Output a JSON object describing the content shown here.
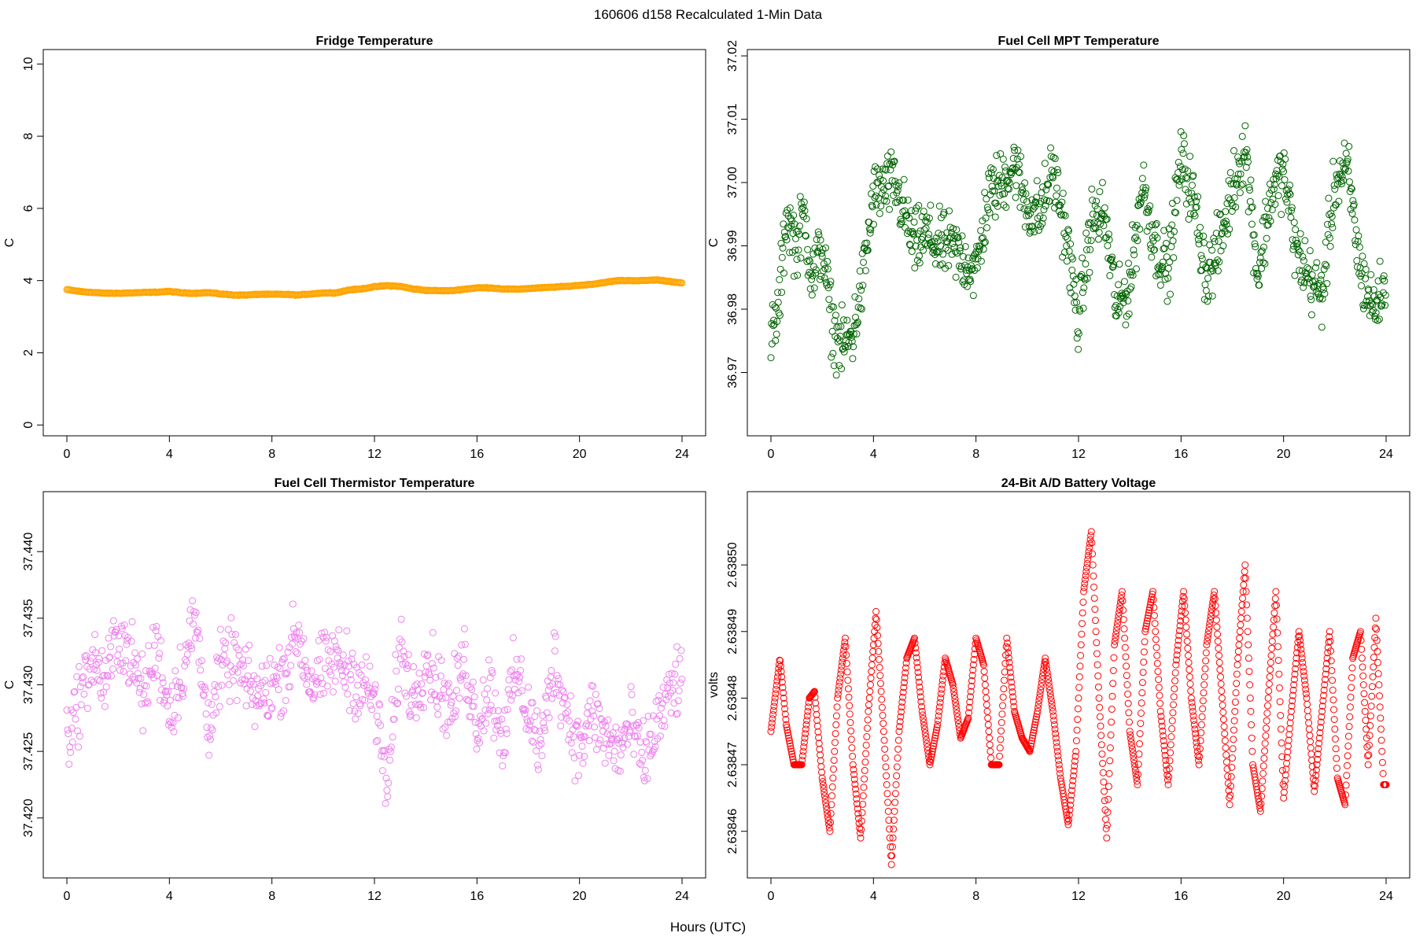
{
  "figure": {
    "suptitle": "160606   d158   Recalculated 1-Min Data",
    "xlabel": "Hours (UTC)"
  },
  "chart_data": [
    {
      "type": "scatter",
      "title": "Fridge Temperature",
      "xlabel": "",
      "ylabel": "C",
      "xlim": [
        0,
        24
      ],
      "ylim": [
        -0.3,
        10.4
      ],
      "xticks": [
        0,
        4,
        8,
        12,
        16,
        20,
        24
      ],
      "xtick_labels": [
        "0",
        "4",
        "8",
        "12",
        "16",
        "20",
        "24"
      ],
      "yticks": [
        0,
        2,
        4,
        6,
        8,
        10
      ],
      "ytick_labels": [
        "0",
        "2",
        "4",
        "6",
        "8",
        "10"
      ],
      "color": "#ffa500",
      "marker": "circle-open-dense",
      "series": [
        {
          "name": "Fridge Temperature",
          "x": [
            0,
            0.5,
            1,
            1.5,
            2,
            2.5,
            3,
            3.5,
            4,
            4.5,
            5,
            5.5,
            6,
            6.5,
            7,
            7.5,
            8,
            8.5,
            9,
            9.5,
            10,
            10.5,
            11,
            11.5,
            12,
            12.5,
            13,
            13.5,
            14,
            14.5,
            15,
            15.5,
            16,
            16.5,
            17,
            17.5,
            18,
            18.5,
            19,
            19.5,
            20,
            20.5,
            21,
            21.5,
            22,
            22.5,
            23,
            23.5,
            24
          ],
          "y": [
            3.75,
            3.7,
            3.67,
            3.65,
            3.65,
            3.66,
            3.67,
            3.68,
            3.7,
            3.66,
            3.65,
            3.67,
            3.63,
            3.6,
            3.6,
            3.62,
            3.62,
            3.62,
            3.6,
            3.63,
            3.66,
            3.66,
            3.74,
            3.77,
            3.83,
            3.86,
            3.84,
            3.77,
            3.73,
            3.72,
            3.72,
            3.76,
            3.8,
            3.8,
            3.77,
            3.76,
            3.78,
            3.8,
            3.82,
            3.84,
            3.87,
            3.9,
            3.95,
            4.0,
            4.0,
            4.0,
            4.02,
            3.98,
            3.93
          ]
        }
      ]
    },
    {
      "type": "scatter",
      "title": "Fuel Cell MPT Temperature",
      "xlabel": "",
      "ylabel": "C",
      "xlim": [
        0,
        24
      ],
      "ylim": [
        36.96,
        37.021
      ],
      "xticks": [
        0,
        4,
        8,
        12,
        16,
        20,
        24
      ],
      "xtick_labels": [
        "0",
        "4",
        "8",
        "12",
        "16",
        "20",
        "24"
      ],
      "yticks": [
        36.97,
        36.98,
        36.99,
        37.0,
        37.01,
        37.02
      ],
      "ytick_labels": [
        "36.97",
        "36.98",
        "36.99",
        "37.00",
        "37.01",
        "37.02"
      ],
      "color": "#006400",
      "marker": "circle-open",
      "series": [
        {
          "name": "Fuel Cell MPT Temperature",
          "x": [
            0,
            0.3,
            0.6,
            1,
            1.3,
            1.6,
            2,
            2.4,
            2.8,
            3.2,
            3.6,
            4,
            4.4,
            4.8,
            5.2,
            5.6,
            6,
            6.5,
            7,
            7.5,
            8,
            8.5,
            9,
            9.5,
            10,
            10.5,
            11,
            11.5,
            12,
            12.5,
            13,
            13.5,
            14,
            14.5,
            15,
            15.5,
            16,
            16.5,
            17,
            17.5,
            18,
            18.5,
            19,
            19.5,
            20,
            20.5,
            21,
            21.5,
            22,
            22.5,
            23,
            23.5,
            24
          ],
          "y": [
            36.975,
            36.98,
            36.995,
            36.99,
            36.995,
            36.985,
            36.99,
            36.977,
            36.974,
            36.976,
            36.985,
            36.998,
            36.999,
            37.0,
            36.995,
            36.99,
            36.992,
            36.99,
            36.99,
            36.988,
            36.986,
            36.998,
            37.0,
            37.003,
            36.996,
            36.995,
            37.002,
            36.992,
            36.978,
            36.994,
            36.995,
            36.98,
            36.984,
            37.0,
            36.99,
            36.986,
            37.004,
            36.997,
            36.985,
            36.99,
            36.999,
            37.006,
            36.985,
            36.998,
            37.002,
            36.989,
            36.985,
            36.982,
            37.0,
            37.002,
            36.986,
            36.98,
            36.984
          ]
        }
      ]
    },
    {
      "type": "scatter",
      "title": "Fuel Cell Thermistor Temperature",
      "xlabel": "",
      "ylabel": "C",
      "xlim": [
        0,
        24
      ],
      "ylim": [
        37.4155,
        37.4445
      ],
      "xticks": [
        0,
        4,
        8,
        12,
        16,
        20,
        24
      ],
      "xtick_labels": [
        "0",
        "4",
        "8",
        "12",
        "16",
        "20",
        "24"
      ],
      "yticks": [
        37.42,
        37.425,
        37.43,
        37.435,
        37.44
      ],
      "ytick_labels": [
        "37.420",
        "37.425",
        "37.430",
        "37.435",
        "37.440"
      ],
      "color": "#ee82ee",
      "marker": "circle-open",
      "series": [
        {
          "name": "Fuel Cell Thermistor Temperature",
          "x": [
            0,
            0.5,
            1,
            1.5,
            2,
            2.5,
            3,
            3.5,
            4,
            4.5,
            5,
            5.5,
            6,
            6.5,
            7,
            7.5,
            8,
            8.5,
            9,
            9.5,
            10,
            10.5,
            11,
            11.5,
            12,
            12.5,
            13,
            13.5,
            14,
            14.5,
            15,
            15.5,
            16,
            16.5,
            17,
            17.5,
            18,
            18.5,
            19,
            19.5,
            20,
            20.5,
            21,
            21.5,
            22,
            22.5,
            23,
            23.5,
            24
          ],
          "y": [
            37.426,
            37.429,
            37.432,
            37.43,
            37.434,
            37.432,
            37.429,
            37.433,
            37.428,
            37.431,
            37.435,
            37.427,
            37.431,
            37.432,
            37.43,
            37.429,
            37.43,
            37.431,
            37.434,
            37.43,
            37.431,
            37.432,
            37.431,
            37.43,
            37.429,
            37.422,
            37.433,
            37.429,
            37.432,
            37.43,
            37.428,
            37.432,
            37.427,
            37.43,
            37.426,
            37.431,
            37.428,
            37.425,
            37.432,
            37.428,
            37.425,
            37.428,
            37.426,
            37.425,
            37.427,
            37.424,
            37.427,
            37.429,
            37.431
          ]
        }
      ]
    },
    {
      "type": "scatter",
      "title": "24-Bit A/D Battery Voltage",
      "xlabel": "",
      "ylabel": "volts",
      "xlim": [
        0,
        24
      ],
      "ylim": [
        2.638453,
        2.638511
      ],
      "xticks": [
        0,
        4,
        8,
        12,
        16,
        20,
        24
      ],
      "xtick_labels": [
        "0",
        "4",
        "8",
        "12",
        "16",
        "20",
        "24"
      ],
      "yticks": [
        2.63846,
        2.63847,
        2.63848,
        2.63849,
        2.6385
      ],
      "ytick_labels": [
        "2.63846",
        "2.63847",
        "2.63848",
        "2.63849",
        "2.63850"
      ],
      "color": "#ff0000",
      "marker": "circle-open",
      "series": [
        {
          "name": "24-Bit A/D Battery Voltage",
          "x": [
            0,
            0.35,
            0.6,
            0.9,
            1.2,
            1.5,
            1.7,
            2.0,
            2.3,
            2.6,
            2.9,
            3.2,
            3.5,
            3.8,
            4.1,
            4.4,
            4.7,
            5.0,
            5.3,
            5.6,
            5.9,
            6.2,
            6.5,
            6.8,
            7.1,
            7.4,
            7.7,
            8.0,
            8.3,
            8.6,
            8.9,
            9.2,
            9.5,
            9.8,
            10.1,
            10.4,
            10.7,
            11.0,
            11.3,
            11.6,
            11.9,
            12.2,
            12.5,
            12.8,
            13.1,
            13.4,
            13.7,
            14.0,
            14.3,
            14.6,
            14.9,
            15.2,
            15.5,
            15.8,
            16.1,
            16.4,
            16.7,
            17.0,
            17.3,
            17.6,
            17.9,
            18.2,
            18.5,
            18.8,
            19.1,
            19.4,
            19.7,
            20.0,
            20.3,
            20.6,
            20.9,
            21.2,
            21.5,
            21.8,
            22.1,
            22.4,
            22.7,
            23.0,
            23.3,
            23.6,
            23.9
          ],
          "y": [
            2.638475,
            2.638486,
            2.638476,
            2.63847,
            2.63847,
            2.63848,
            2.638481,
            2.638468,
            2.63846,
            2.63848,
            2.638489,
            2.63847,
            2.638459,
            2.638478,
            2.638493,
            2.638475,
            2.638455,
            2.638475,
            2.638486,
            2.638489,
            2.638478,
            2.63847,
            2.638476,
            2.638486,
            2.638482,
            2.638474,
            2.638477,
            2.638489,
            2.638485,
            2.63847,
            2.63847,
            2.638489,
            2.638478,
            2.638474,
            2.638472,
            2.638478,
            2.638486,
            2.638478,
            2.638468,
            2.638461,
            2.638472,
            2.638496,
            2.638505,
            2.63848,
            2.638459,
            2.638488,
            2.638496,
            2.638475,
            2.638467,
            2.63849,
            2.638496,
            2.638478,
            2.638467,
            2.638485,
            2.638496,
            2.63848,
            2.63847,
            2.638488,
            2.638496,
            2.63848,
            2.638464,
            2.638485,
            2.6385,
            2.63847,
            2.638463,
            2.63848,
            2.638496,
            2.638465,
            2.638478,
            2.63849,
            2.63848,
            2.638466,
            2.638478,
            2.63849,
            2.638468,
            2.638464,
            2.638486,
            2.63849,
            2.63847,
            2.638492,
            2.638467
          ]
        }
      ]
    }
  ]
}
